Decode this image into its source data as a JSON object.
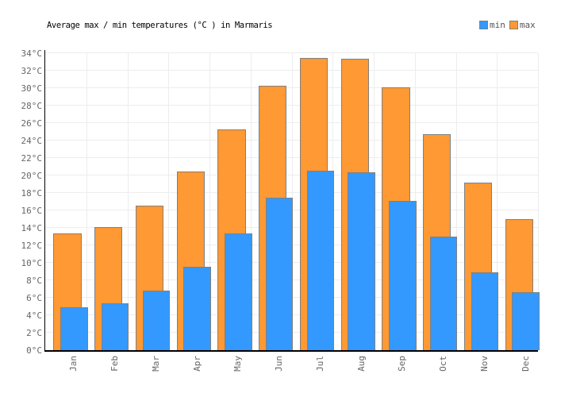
{
  "title": "Average max / min temperatures (°C ) in Marmaris",
  "legend": {
    "items": [
      {
        "label": "min",
        "color": "#3399FF"
      },
      {
        "label": "max",
        "color": "#FF9933"
      }
    ],
    "position": "top-right"
  },
  "chart_data": {
    "type": "bar",
    "title": "Average max / min temperatures (°C ) in Marmaris",
    "categories": [
      "Jan",
      "Feb",
      "Mar",
      "Apr",
      "May",
      "Jun",
      "Jul",
      "Aug",
      "Sep",
      "Oct",
      "Nov",
      "Dec"
    ],
    "series": [
      {
        "name": "max",
        "color": "#FF9933",
        "values": [
          13.4,
          14.1,
          16.6,
          20.5,
          25.3,
          30.3,
          33.5,
          33.4,
          30.1,
          24.8,
          19.2,
          15.0
        ]
      },
      {
        "name": "min",
        "color": "#3399FF",
        "values": [
          4.9,
          5.4,
          6.8,
          9.6,
          13.4,
          17.5,
          20.6,
          20.4,
          17.1,
          13.0,
          8.9,
          6.6
        ]
      }
    ],
    "xlabel": "",
    "ylabel": "",
    "ytick_suffix": "°C",
    "ytick_step": 2,
    "ylim": [
      0,
      34.4
    ],
    "ymax_gridline": 34,
    "grid": true,
    "colors": {
      "bar_border": "#808080",
      "grid_line": "#ededed",
      "axis_line": "#000000",
      "tick_text": "#666666",
      "legend_text": "#555555",
      "title_text": "#000000",
      "background": "#ffffff"
    }
  }
}
